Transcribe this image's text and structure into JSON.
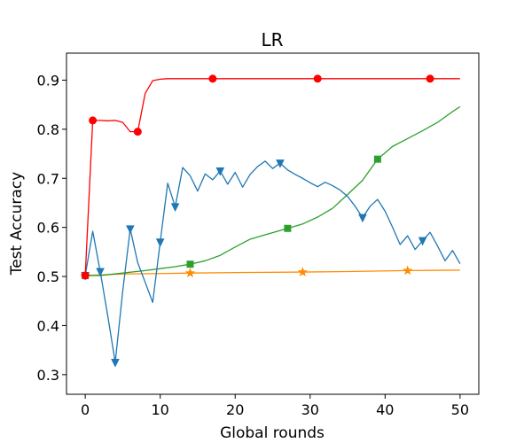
{
  "chart_data": {
    "type": "line",
    "title": "LR",
    "xlabel": "Global rounds",
    "ylabel": "Test Accuracy",
    "xlim": [
      -2.5,
      52.5
    ],
    "ylim": [
      0.26,
      0.955
    ],
    "xticks": [
      "0",
      "10",
      "20",
      "30",
      "40",
      "50"
    ],
    "yticks": [
      "0.3",
      "0.4",
      "0.5",
      "0.6",
      "0.7",
      "0.8",
      "0.9"
    ],
    "grid": false,
    "legend": "none",
    "series": [
      {
        "color": "#ff0000",
        "marker": "circle",
        "points": [
          [
            0,
            0.502
          ],
          [
            1,
            0.818
          ],
          [
            2,
            0.818
          ],
          [
            3,
            0.817
          ],
          [
            4,
            0.818
          ],
          [
            5,
            0.814
          ],
          [
            6,
            0.795
          ],
          [
            7,
            0.795
          ],
          [
            8,
            0.873
          ],
          [
            9,
            0.899
          ],
          [
            10,
            0.902
          ],
          [
            11,
            0.903
          ],
          [
            12,
            0.903
          ],
          [
            17,
            0.903
          ],
          [
            31,
            0.903
          ],
          [
            46,
            0.903
          ],
          [
            50,
            0.903
          ]
        ],
        "markers_x": [
          0,
          1,
          7,
          17,
          31,
          46
        ]
      },
      {
        "color": "#1f77b4",
        "marker": "triangle-down",
        "points": [
          [
            0,
            0.502
          ],
          [
            1,
            0.592
          ],
          [
            2,
            0.51
          ],
          [
            3,
            0.42
          ],
          [
            4,
            0.325
          ],
          [
            5,
            0.47
          ],
          [
            6,
            0.597
          ],
          [
            7,
            0.528
          ],
          [
            8,
            0.488
          ],
          [
            9,
            0.447
          ],
          [
            10,
            0.57
          ],
          [
            11,
            0.69
          ],
          [
            12,
            0.642
          ],
          [
            13,
            0.722
          ],
          [
            14,
            0.705
          ],
          [
            15,
            0.674
          ],
          [
            16,
            0.709
          ],
          [
            17,
            0.697
          ],
          [
            18,
            0.715
          ],
          [
            19,
            0.688
          ],
          [
            20,
            0.712
          ],
          [
            21,
            0.682
          ],
          [
            22,
            0.708
          ],
          [
            23,
            0.724
          ],
          [
            24,
            0.735
          ],
          [
            25,
            0.72
          ],
          [
            26,
            0.731
          ],
          [
            27,
            0.717
          ],
          [
            28,
            0.708
          ],
          [
            29,
            0.7
          ],
          [
            30,
            0.691
          ],
          [
            31,
            0.683
          ],
          [
            32,
            0.692
          ],
          [
            33,
            0.685
          ],
          [
            34,
            0.676
          ],
          [
            35,
            0.663
          ],
          [
            36,
            0.643
          ],
          [
            37,
            0.62
          ],
          [
            38,
            0.643
          ],
          [
            39,
            0.657
          ],
          [
            40,
            0.633
          ],
          [
            41,
            0.6
          ],
          [
            42,
            0.565
          ],
          [
            43,
            0.583
          ],
          [
            44,
            0.555
          ],
          [
            45,
            0.573
          ],
          [
            46,
            0.59
          ],
          [
            47,
            0.562
          ],
          [
            48,
            0.532
          ],
          [
            49,
            0.553
          ],
          [
            50,
            0.526
          ]
        ],
        "markers_x": [
          0,
          2,
          4,
          6,
          10,
          12,
          18,
          26,
          37,
          45
        ]
      },
      {
        "color": "#2ca02c",
        "marker": "square",
        "points": [
          [
            0,
            0.502
          ],
          [
            2,
            0.502
          ],
          [
            5,
            0.507
          ],
          [
            8,
            0.512
          ],
          [
            10,
            0.516
          ],
          [
            12,
            0.52
          ],
          [
            14,
            0.525
          ],
          [
            16,
            0.532
          ],
          [
            18,
            0.543
          ],
          [
            20,
            0.56
          ],
          [
            22,
            0.576
          ],
          [
            24,
            0.585
          ],
          [
            27,
            0.598
          ],
          [
            29,
            0.607
          ],
          [
            31,
            0.621
          ],
          [
            33,
            0.639
          ],
          [
            35,
            0.667
          ],
          [
            37,
            0.696
          ],
          [
            39,
            0.739
          ],
          [
            41,
            0.765
          ],
          [
            43,
            0.781
          ],
          [
            45,
            0.797
          ],
          [
            47,
            0.814
          ],
          [
            49,
            0.836
          ],
          [
            50,
            0.846
          ]
        ],
        "markers_x": [
          0,
          14,
          27,
          39
        ]
      },
      {
        "color": "#ff8c00",
        "marker": "star",
        "points": [
          [
            0,
            0.502
          ],
          [
            5,
            0.505
          ],
          [
            10,
            0.506
          ],
          [
            14,
            0.507
          ],
          [
            20,
            0.508
          ],
          [
            29,
            0.509
          ],
          [
            35,
            0.51
          ],
          [
            43,
            0.512
          ],
          [
            50,
            0.513
          ]
        ],
        "markers_x": [
          0,
          14,
          29,
          43
        ]
      }
    ]
  }
}
